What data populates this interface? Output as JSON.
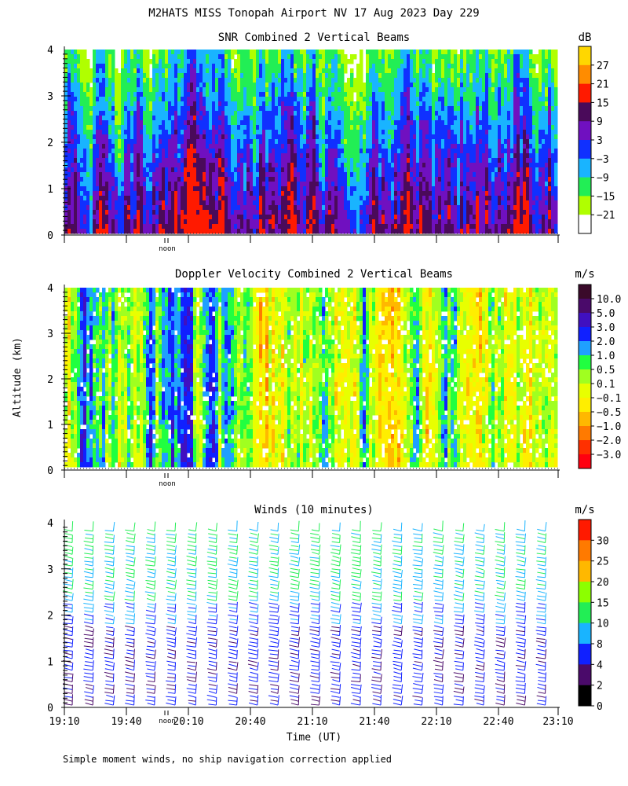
{
  "header": {
    "title": "M2HATS MISS Tonopah Airport NV  17 Aug 2023 Day 229"
  },
  "footer": {
    "note": "Simple moment winds, no ship navigation correction applied"
  },
  "chart_data": [
    {
      "id": "snr",
      "type": "heatmap",
      "title": "SNR Combined 2 Vertical Beams",
      "ylabel": "",
      "ylim": [
        0,
        4
      ],
      "y_ticks": [
        "0",
        "1",
        "2",
        "3",
        "4"
      ],
      "noon_label": "noon",
      "colorbar": {
        "unit": "dB",
        "labels": [
          "27",
          "21",
          "15",
          "9",
          "3",
          "−3",
          "−9",
          "−15",
          "−21"
        ],
        "colors": [
          "#ffd700",
          "#ff8c00",
          "#ff1a00",
          "#4a0a5a",
          "#7010c0",
          "#1030ff",
          "#19b4ff",
          "#22ee55",
          "#b0ff00",
          "#ffffff"
        ]
      }
    },
    {
      "id": "doppler",
      "type": "heatmap",
      "title": "Doppler Velocity Combined 2 Vertical Beams",
      "ylabel": "Altitude (km)",
      "ylim": [
        0,
        4
      ],
      "y_ticks": [
        "0",
        "1",
        "2",
        "3",
        "4"
      ],
      "noon_label": "noon",
      "colorbar": {
        "unit": "m/s",
        "labels": [
          "10.0",
          "5.0",
          "3.0",
          "2.0",
          "1.0",
          "0.5",
          "0.1",
          "−0.1",
          "−0.5",
          "−1.0",
          "−2.0",
          "−3.0"
        ],
        "colors": [
          "#3a0a2a",
          "#4a0a6a",
          "#4010c0",
          "#1020ff",
          "#1fa0ff",
          "#20ff40",
          "#a0ff20",
          "#e8ff00",
          "#ffee00",
          "#ffb800",
          "#ff7a00",
          "#ff3000",
          "#ff0010"
        ]
      }
    },
    {
      "id": "winds",
      "type": "scatter",
      "title": "Winds (10 minutes)",
      "ylim": [
        0,
        4
      ],
      "y_ticks": [
        "0",
        "1",
        "2",
        "3",
        "4"
      ],
      "noon_label": "noon",
      "xlabel": "Time (UT)",
      "x_ticks": [
        "19:10",
        "19:40",
        "20:10",
        "20:40",
        "21:10",
        "21:40",
        "22:10",
        "22:40",
        "23:10"
      ],
      "colorbar": {
        "unit": "m/s",
        "labels": [
          "30",
          "25",
          "20",
          "15",
          "10",
          "8",
          "4",
          "2",
          "0"
        ],
        "colors": [
          "#ff1a00",
          "#ff7a00",
          "#ffb800",
          "#8cff00",
          "#22ee55",
          "#19b4ff",
          "#1020ff",
          "#4a0a6a",
          "#000000"
        ]
      }
    }
  ]
}
